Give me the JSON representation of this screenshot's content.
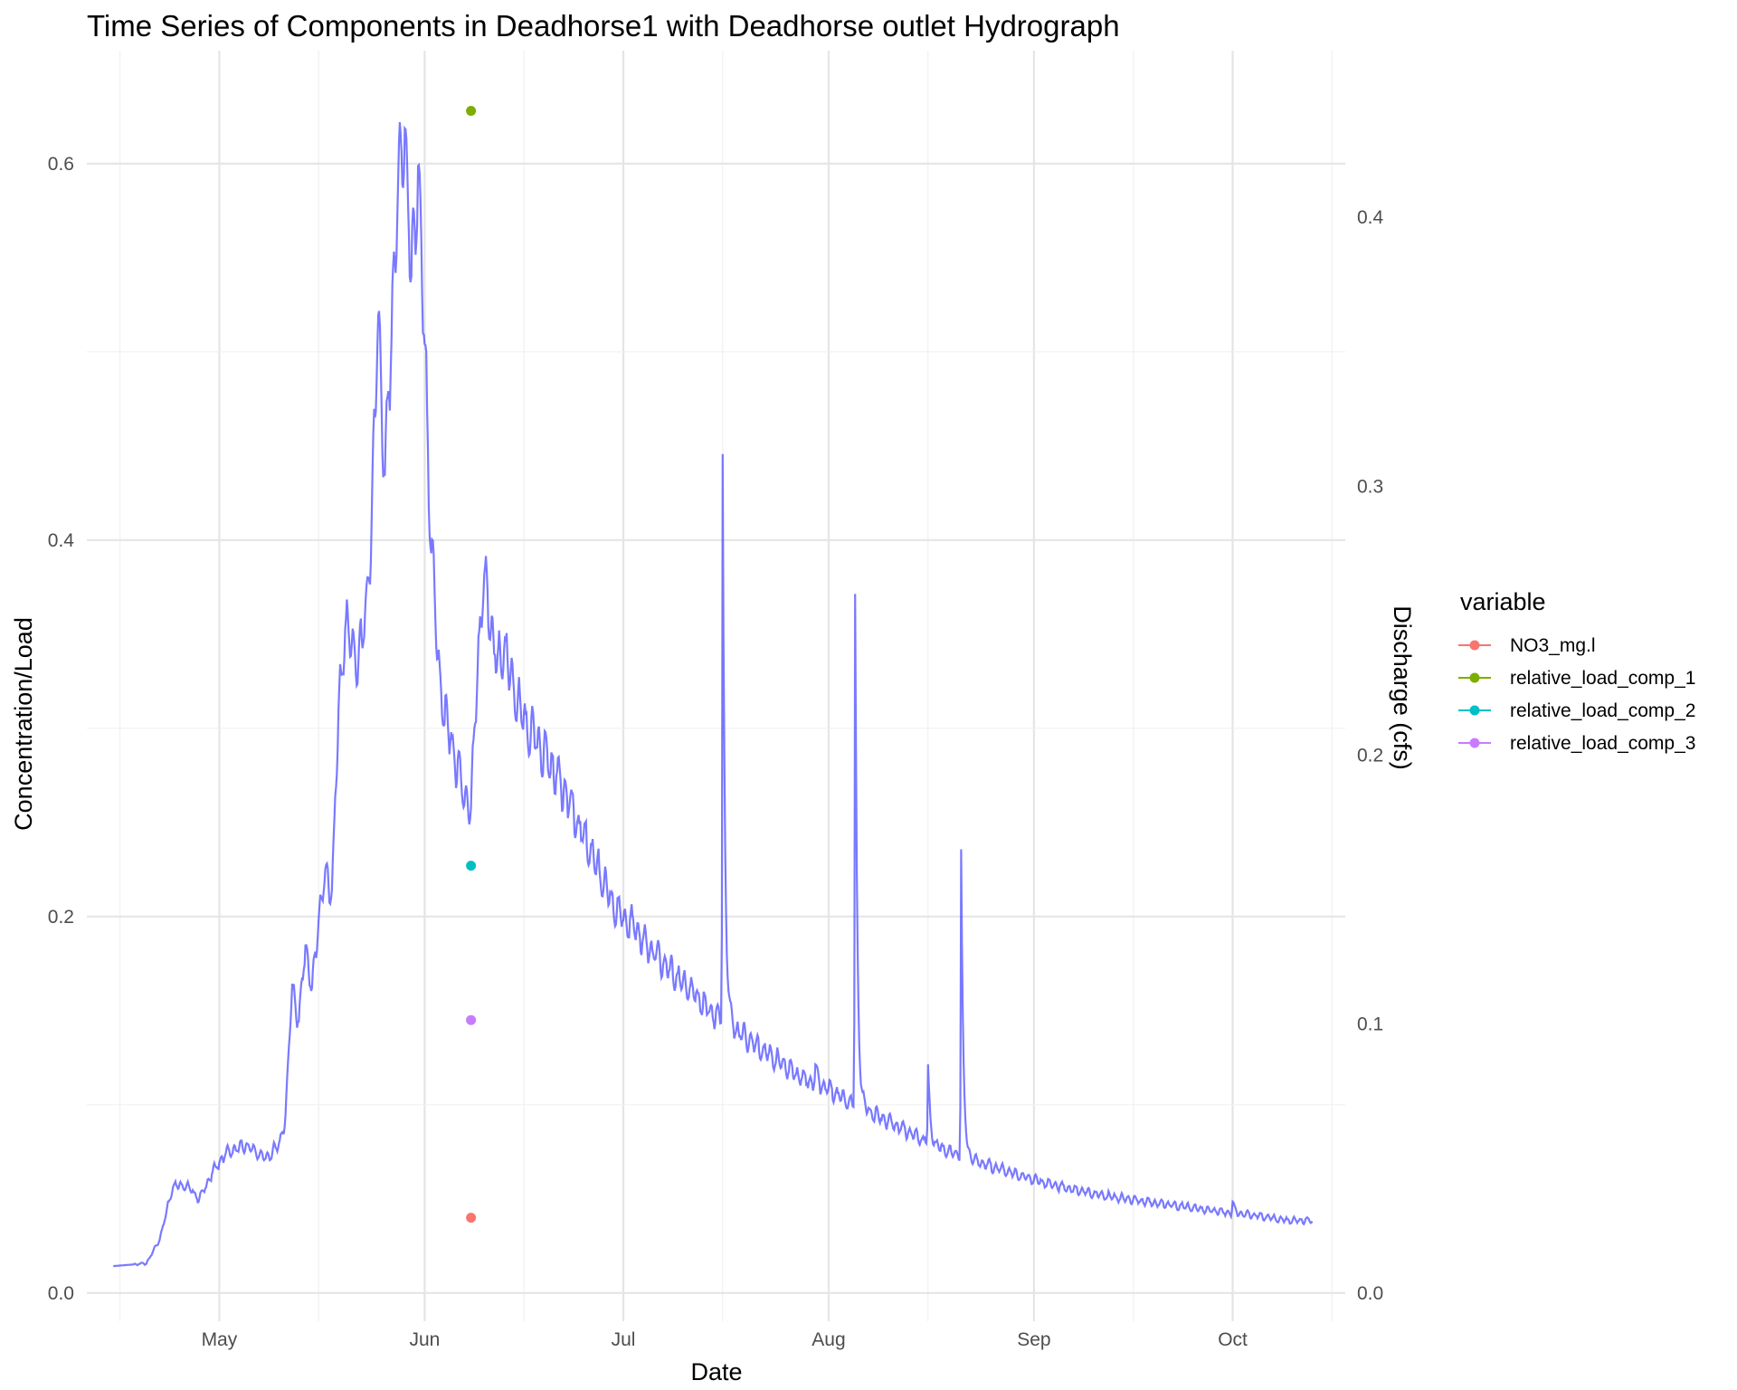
{
  "chart_data": {
    "type": "line",
    "title": "Time Series of Components in Deadhorse1 with Deadhorse outlet Hydrograph",
    "xlabel": "Date",
    "ylabel": "Concentration/Load",
    "y2label": "Discharge (cfs)",
    "x_ticks": [
      "May",
      "Jun",
      "Jul",
      "Aug",
      "Sep",
      "Oct"
    ],
    "y_ticks": [
      "0.0",
      "0.2",
      "0.4",
      "0.6"
    ],
    "y2_ticks": [
      "0.0",
      "0.1",
      "0.2",
      "0.3",
      "0.4"
    ],
    "ylim": [
      -0.015,
      0.66
    ],
    "y2lim": [
      -0.0105,
      0.462
    ],
    "xlim": [
      "2023-04-11",
      "2023-10-18"
    ],
    "grid": true,
    "legend": {
      "title": "variable",
      "position": "right",
      "entries": [
        "NO3_mg.l",
        "relative_load_comp_1",
        "relative_load_comp_2",
        "relative_load_comp_3"
      ]
    },
    "points": [
      {
        "variable": "NO3_mg.l",
        "date": "2023-06-08",
        "value": 0.04,
        "color": "#F8766D"
      },
      {
        "variable": "relative_load_comp_1",
        "date": "2023-06-08",
        "value": 0.628,
        "color": "#7CAE00"
      },
      {
        "variable": "relative_load_comp_2",
        "date": "2023-06-08",
        "value": 0.227,
        "color": "#00BFC4"
      },
      {
        "variable": "relative_load_comp_3",
        "date": "2023-06-08",
        "value": 0.145,
        "color": "#C77CFF"
      }
    ],
    "hydrograph": {
      "color": "#4040ff",
      "axis": "secondary",
      "values": [
        [
          "2023-04-15",
          0.01
        ],
        [
          "2023-04-20",
          0.011
        ],
        [
          "2023-04-22",
          0.02
        ],
        [
          "2023-04-24",
          0.04
        ],
        [
          "2023-04-26",
          0.04
        ],
        [
          "2023-04-28",
          0.035
        ],
        [
          "2023-04-30",
          0.045
        ],
        [
          "2023-05-02",
          0.052
        ],
        [
          "2023-05-05",
          0.055
        ],
        [
          "2023-05-08",
          0.05
        ],
        [
          "2023-05-10",
          0.055
        ],
        [
          "2023-05-11",
          0.065
        ],
        [
          "2023-05-12",
          0.115
        ],
        [
          "2023-05-13",
          0.1
        ],
        [
          "2023-05-14",
          0.13
        ],
        [
          "2023-05-15",
          0.112
        ],
        [
          "2023-05-16",
          0.14
        ],
        [
          "2023-05-17",
          0.155
        ],
        [
          "2023-05-18",
          0.15
        ],
        [
          "2023-05-19",
          0.215
        ],
        [
          "2023-05-20",
          0.25
        ],
        [
          "2023-05-21",
          0.24
        ],
        [
          "2023-05-22",
          0.235
        ],
        [
          "2023-05-23",
          0.25
        ],
        [
          "2023-05-24",
          0.285
        ],
        [
          "2023-05-25",
          0.365
        ],
        [
          "2023-05-26",
          0.3
        ],
        [
          "2023-05-27",
          0.36
        ],
        [
          "2023-05-28",
          0.41
        ],
        [
          "2023-05-29",
          0.435
        ],
        [
          "2023-05-30",
          0.375
        ],
        [
          "2023-05-31",
          0.42
        ],
        [
          "2023-06-01",
          0.35
        ],
        [
          "2023-06-02",
          0.28
        ],
        [
          "2023-06-03",
          0.235
        ],
        [
          "2023-06-04",
          0.215
        ],
        [
          "2023-06-05",
          0.205
        ],
        [
          "2023-06-06",
          0.195
        ],
        [
          "2023-06-07",
          0.185
        ],
        [
          "2023-06-08",
          0.18
        ],
        [
          "2023-06-09",
          0.235
        ],
        [
          "2023-06-10",
          0.265
        ],
        [
          "2023-06-11",
          0.25
        ],
        [
          "2023-06-12",
          0.232
        ],
        [
          "2023-06-13",
          0.24
        ],
        [
          "2023-06-14",
          0.228
        ],
        [
          "2023-06-16",
          0.212
        ],
        [
          "2023-06-18",
          0.205
        ],
        [
          "2023-06-20",
          0.197
        ],
        [
          "2023-06-22",
          0.188
        ],
        [
          "2023-06-24",
          0.175
        ],
        [
          "2023-06-26",
          0.165
        ],
        [
          "2023-06-28",
          0.152
        ],
        [
          "2023-06-30",
          0.142
        ],
        [
          "2023-07-02",
          0.138
        ],
        [
          "2023-07-05",
          0.128
        ],
        [
          "2023-07-08",
          0.12
        ],
        [
          "2023-07-11",
          0.113
        ],
        [
          "2023-07-14",
          0.105
        ],
        [
          "2023-07-17",
          0.1
        ],
        [
          "2023-07-20",
          0.094
        ],
        [
          "2023-07-24",
          0.087
        ],
        [
          "2023-07-28",
          0.08
        ],
        [
          "2023-08-01",
          0.076
        ],
        [
          "2023-08-05",
          0.07
        ],
        [
          "2023-08-09",
          0.065
        ],
        [
          "2023-08-13",
          0.06
        ],
        [
          "2023-08-17",
          0.055
        ],
        [
          "2023-08-22",
          0.05
        ],
        [
          "2023-08-27",
          0.046
        ],
        [
          "2023-09-01",
          0.042
        ],
        [
          "2023-09-06",
          0.039
        ],
        [
          "2023-09-12",
          0.036
        ],
        [
          "2023-09-18",
          0.034
        ],
        [
          "2023-09-24",
          0.032
        ],
        [
          "2023-09-30",
          0.03
        ],
        [
          "2023-10-04",
          0.029
        ],
        [
          "2023-10-09",
          0.027
        ],
        [
          "2023-10-13",
          0.027
        ]
      ],
      "peaks": [
        [
          "2023-06-24",
          0.092
        ],
        [
          "2023-07-01",
          0.125
        ],
        [
          "2023-07-16",
          0.312
        ],
        [
          "2023-07-20",
          0.089
        ],
        [
          "2023-07-30",
          0.085
        ],
        [
          "2023-08-05",
          0.26
        ],
        [
          "2023-08-16",
          0.085
        ],
        [
          "2023-08-21",
          0.165
        ],
        [
          "2023-08-24",
          0.048
        ],
        [
          "2023-10-01",
          0.034
        ]
      ]
    }
  }
}
